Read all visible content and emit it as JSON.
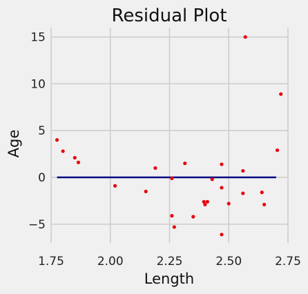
{
  "chart_data": {
    "type": "scatter",
    "title": "Residual Plot",
    "xlabel": "Length",
    "ylabel": "Age",
    "xlim": [
      1.75,
      2.75
    ],
    "ylim": [
      -7,
      16
    ],
    "xticks": [
      "1.75",
      "2.00",
      "2.25",
      "2.50",
      "2.75"
    ],
    "xtick_values": [
      1.75,
      2.0,
      2.25,
      2.5,
      2.75
    ],
    "yticks": [
      "15",
      "10",
      "5",
      "0",
      "−5"
    ],
    "ytick_values": [
      15,
      10,
      5,
      0,
      -5
    ],
    "grid": true,
    "colors": {
      "background": "#f0f0f0",
      "grid": "#cbcbcb",
      "points": "#e8000b",
      "zero_line": "#000080"
    },
    "zero_line": {
      "x": [
        1.775,
        2.7
      ],
      "y": 0
    },
    "points": [
      {
        "x": 1.775,
        "y": 4.0
      },
      {
        "x": 1.8,
        "y": 2.8
      },
      {
        "x": 1.85,
        "y": 2.1
      },
      {
        "x": 1.865,
        "y": 1.6
      },
      {
        "x": 2.02,
        "y": -0.9
      },
      {
        "x": 2.15,
        "y": -1.5
      },
      {
        "x": 2.19,
        "y": 1.0
      },
      {
        "x": 2.26,
        "y": -0.1
      },
      {
        "x": 2.26,
        "y": -4.1
      },
      {
        "x": 2.27,
        "y": -5.3
      },
      {
        "x": 2.315,
        "y": 1.5
      },
      {
        "x": 2.35,
        "y": -4.2
      },
      {
        "x": 2.395,
        "y": -2.6
      },
      {
        "x": 2.4,
        "y": -2.9
      },
      {
        "x": 2.41,
        "y": -2.6
      },
      {
        "x": 2.43,
        "y": -0.2
      },
      {
        "x": 2.47,
        "y": 1.4
      },
      {
        "x": 2.47,
        "y": -1.1
      },
      {
        "x": 2.47,
        "y": -6.1
      },
      {
        "x": 2.5,
        "y": -2.8
      },
      {
        "x": 2.56,
        "y": 0.7
      },
      {
        "x": 2.56,
        "y": -1.7
      },
      {
        "x": 2.57,
        "y": 15.0
      },
      {
        "x": 2.64,
        "y": -1.6
      },
      {
        "x": 2.65,
        "y": -2.9
      },
      {
        "x": 2.705,
        "y": 2.9
      },
      {
        "x": 2.72,
        "y": 8.9
      }
    ]
  }
}
